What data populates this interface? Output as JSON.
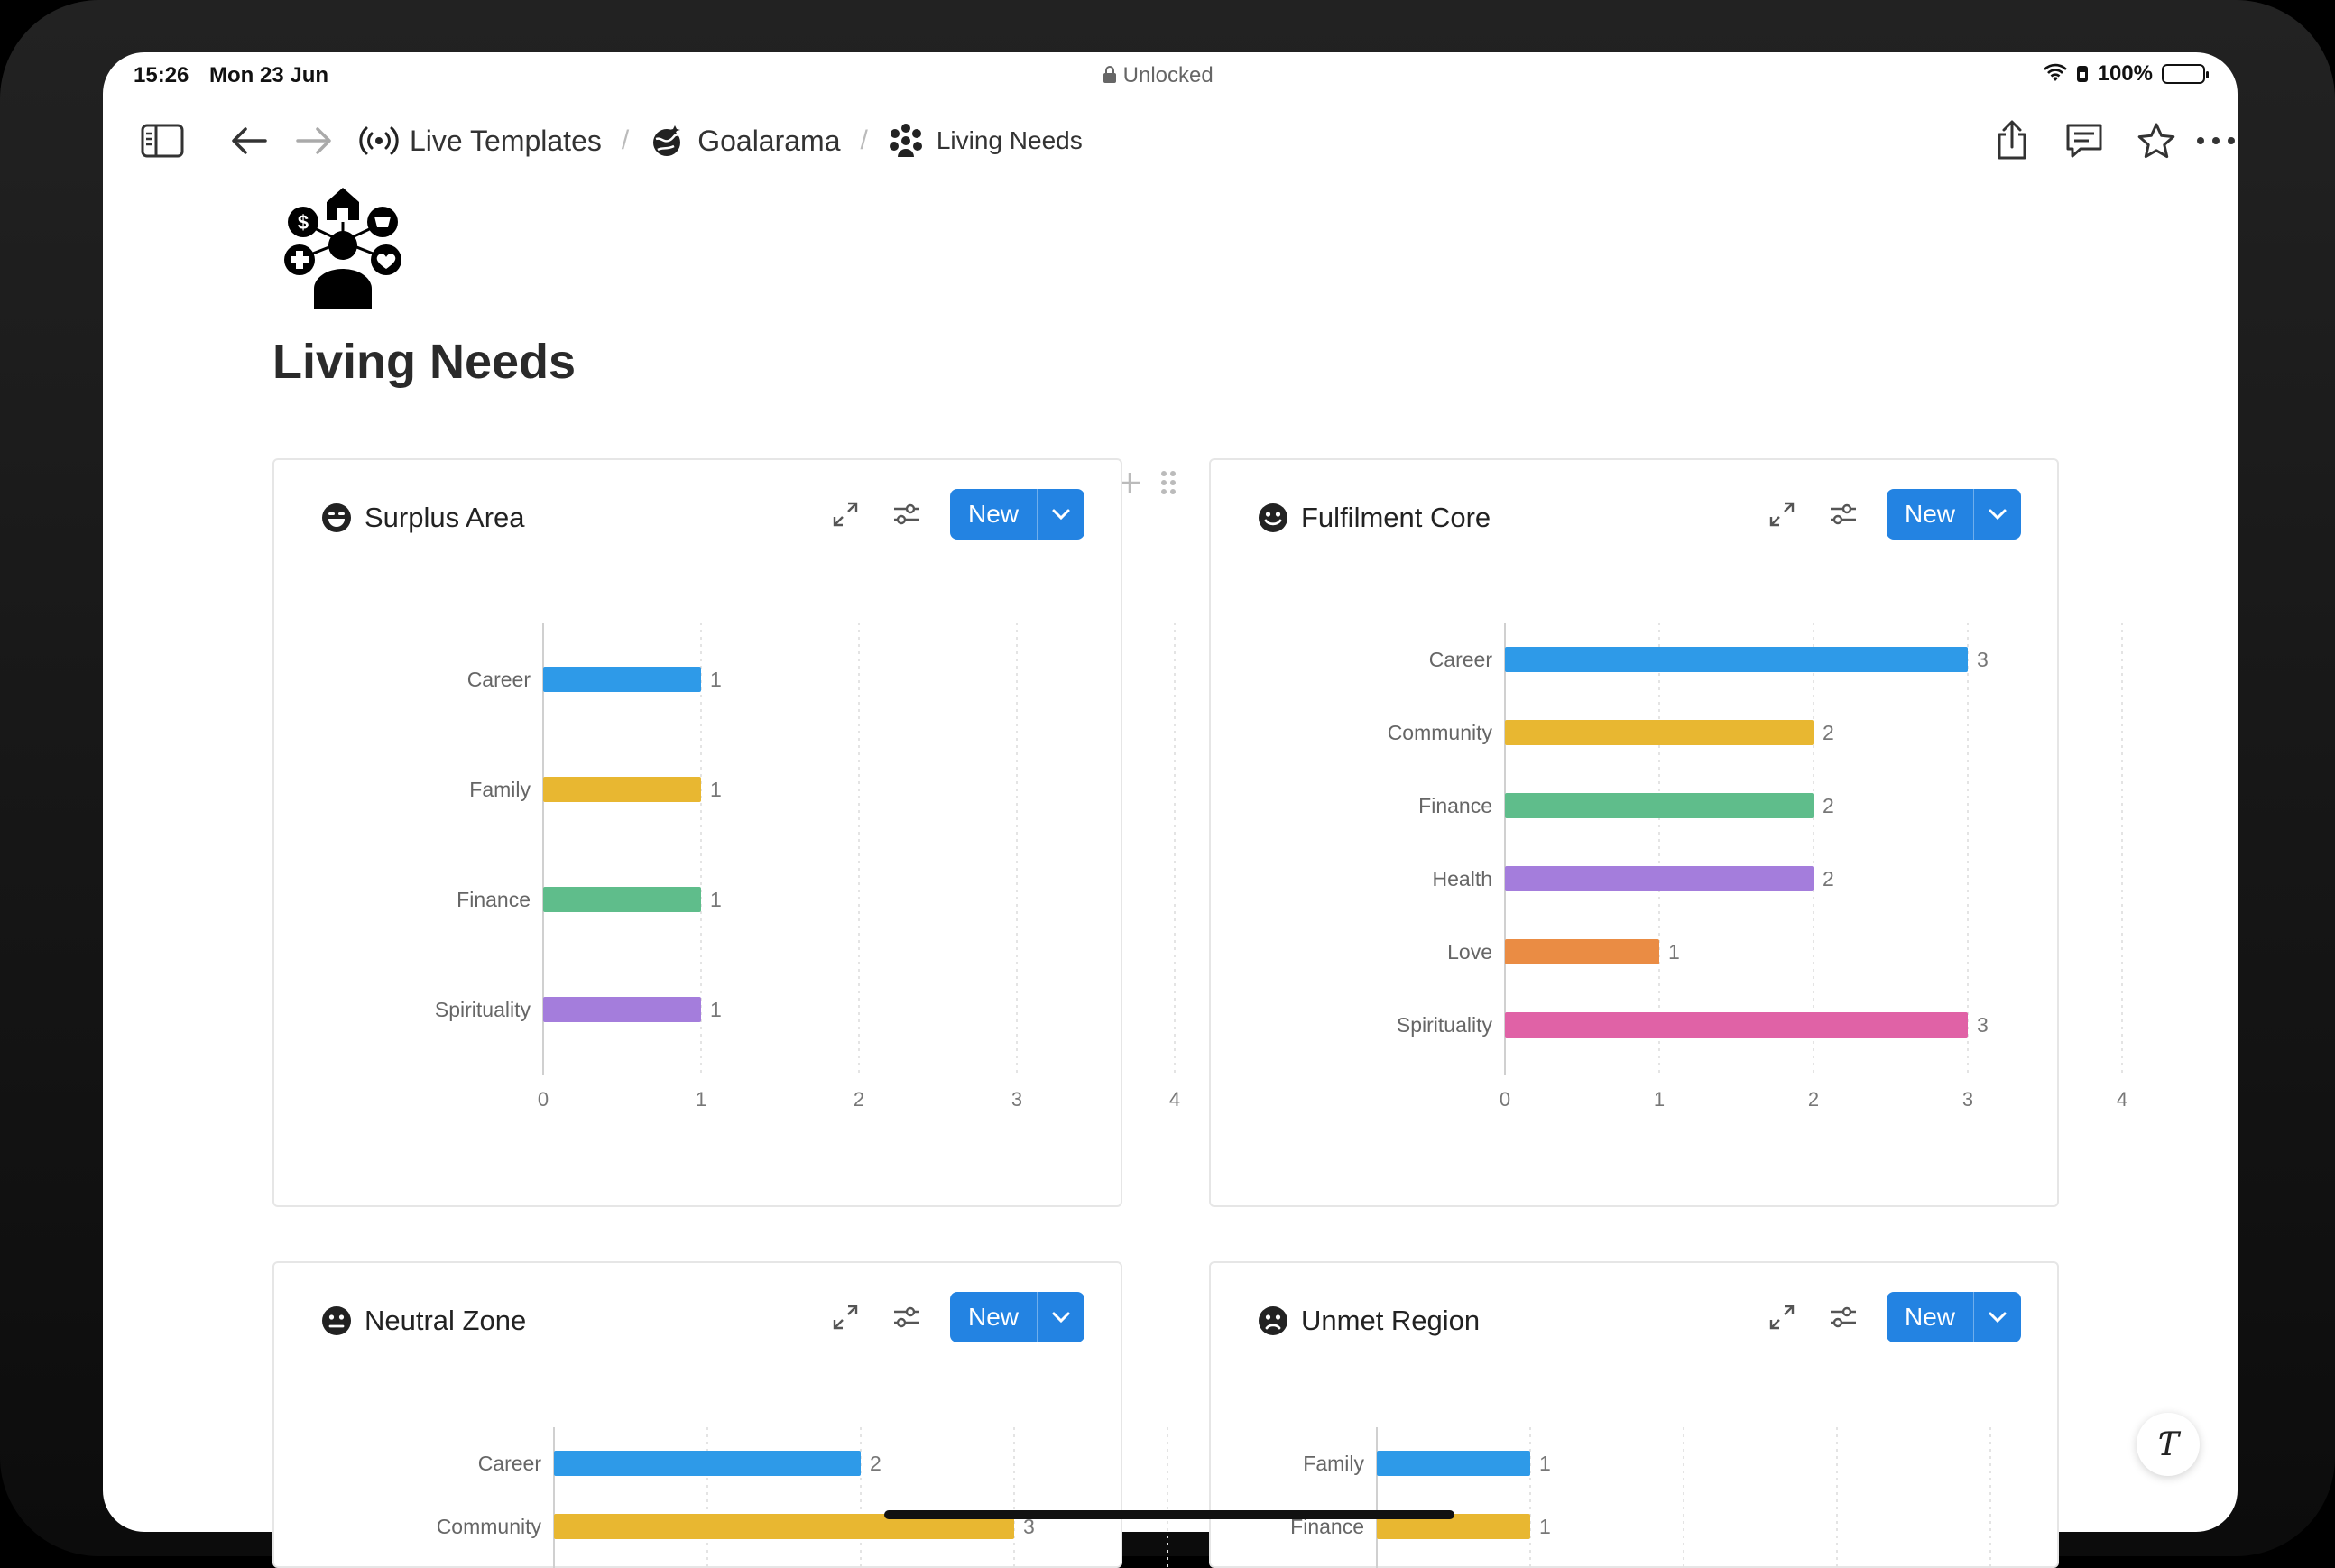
{
  "status_bar": {
    "time": "15:26",
    "date": "Mon 23 Jun",
    "lock_status": "Unlocked",
    "battery": "100%"
  },
  "breadcrumbs": [
    {
      "label": "Live Templates",
      "icon": "broadcast-icon"
    },
    {
      "label": "Goalarama",
      "icon": "globe-icon"
    },
    {
      "label": "Living Needs",
      "icon": "people-needs-icon"
    }
  ],
  "page": {
    "title": "Living Needs"
  },
  "new_label": "New",
  "cards": [
    {
      "title": "Surplus Area",
      "emoji": "grinning-face-icon",
      "chart_data": {
        "type": "bar",
        "orientation": "horizontal",
        "categories": [
          "Career",
          "Family",
          "Finance",
          "Spirituality"
        ],
        "values": [
          1,
          1,
          1,
          1
        ],
        "colors": [
          "#2e9ae8",
          "#e8b731",
          "#5fbd8b",
          "#a47ddc"
        ],
        "xlim": [
          0,
          4
        ],
        "ticks": [
          0,
          1,
          2,
          3,
          4
        ],
        "grid": true
      }
    },
    {
      "title": "Fulfilment Core",
      "emoji": "smiling-face-icon",
      "chart_data": {
        "type": "bar",
        "orientation": "horizontal",
        "categories": [
          "Career",
          "Community",
          "Finance",
          "Health",
          "Love",
          "Spirituality"
        ],
        "values": [
          3,
          2,
          2,
          2,
          1,
          3
        ],
        "colors": [
          "#2e9ae8",
          "#e8b731",
          "#5fbd8b",
          "#a47ddc",
          "#ea8c44",
          "#e062a6"
        ],
        "xlim": [
          0,
          4
        ],
        "ticks": [
          0,
          1,
          2,
          3,
          4
        ],
        "grid": true
      }
    },
    {
      "title": "Neutral Zone",
      "emoji": "neutral-face-icon",
      "chart_data": {
        "type": "bar",
        "orientation": "horizontal",
        "categories": [
          "Career",
          "Community"
        ],
        "values": [
          2,
          3
        ],
        "colors": [
          "#2e9ae8",
          "#e8b731"
        ],
        "xlim": [
          0,
          4
        ],
        "grid": true
      }
    },
    {
      "title": "Unmet Region",
      "emoji": "frowning-face-icon",
      "chart_data": {
        "type": "bar",
        "orientation": "horizontal",
        "categories": [
          "Family",
          "Finance"
        ],
        "values": [
          1,
          1
        ],
        "colors": [
          "#2e9ae8",
          "#e8b731"
        ],
        "xlim": [
          0,
          4
        ],
        "grid": true
      }
    }
  ]
}
